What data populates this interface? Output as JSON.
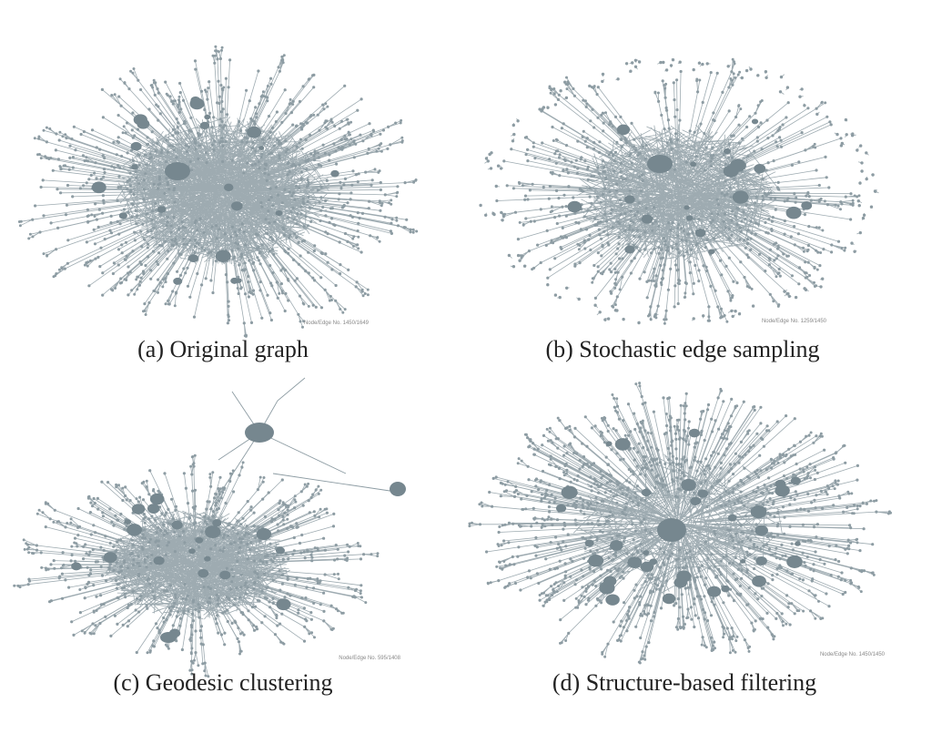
{
  "figure": {
    "panels": [
      {
        "caption": "(a) Original graph",
        "stat": "Node/Edge No. 1450/1649"
      },
      {
        "caption": "(b) Stochastic edge sampling",
        "stat": "Node/Edge No. 1259/1450"
      },
      {
        "caption": "(c) Geodesic clustering",
        "stat": "Node/Edge No. 595/1408"
      },
      {
        "caption": "(d) Structure-based filtering",
        "stat": "Node/Edge No. 1450/1450"
      }
    ]
  }
}
